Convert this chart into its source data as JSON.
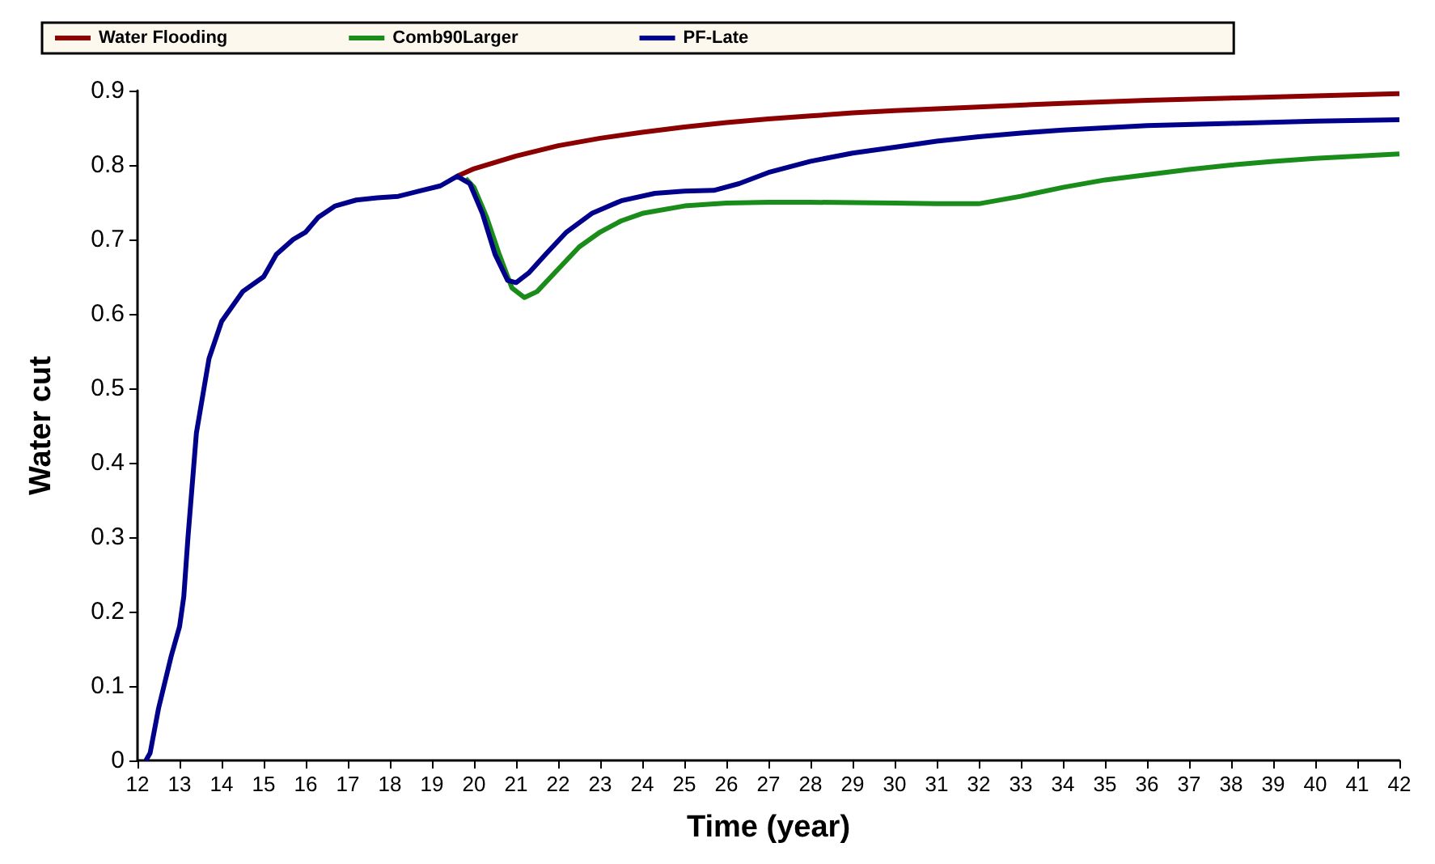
{
  "chart_data": {
    "type": "line",
    "xlabel": "Time (year)",
    "ylabel": "Water cut",
    "xlim": [
      12,
      42
    ],
    "xticks": [
      12,
      13,
      14,
      15,
      16,
      17,
      18,
      19,
      20,
      21,
      22,
      23,
      24,
      25,
      26,
      27,
      28,
      29,
      30,
      31,
      32,
      33,
      34,
      35,
      36,
      37,
      38,
      39,
      40,
      41,
      42
    ],
    "ylim": [
      0,
      0.9
    ],
    "yticks": [
      0,
      0.1,
      0.2,
      0.3,
      0.4,
      0.5,
      0.6,
      0.7,
      0.8,
      0.9
    ],
    "grid": false,
    "legend": "top",
    "marker": "none",
    "line_style": "solid",
    "series": [
      {
        "name": "Water Flooding",
        "color": "#8b0000",
        "x": [
          19.6,
          20,
          21,
          22,
          23,
          24,
          25,
          26,
          27,
          28,
          29,
          30,
          32,
          34,
          36,
          38,
          40,
          42
        ],
        "values": [
          0.785,
          0.795,
          0.812,
          0.826,
          0.836,
          0.844,
          0.851,
          0.857,
          0.862,
          0.866,
          0.87,
          0.873,
          0.878,
          0.883,
          0.887,
          0.89,
          0.893,
          0.896
        ]
      },
      {
        "name": "Comb90Larger",
        "color": "#1a8c1a",
        "x": [
          19.8,
          20.0,
          20.3,
          20.6,
          20.9,
          21.2,
          21.5,
          22.0,
          22.5,
          23.0,
          23.5,
          24.0,
          25,
          26,
          27,
          28,
          30,
          31,
          32,
          33,
          34,
          35,
          36,
          37,
          38,
          39,
          40,
          41,
          42
        ],
        "values": [
          0.782,
          0.77,
          0.73,
          0.68,
          0.635,
          0.622,
          0.63,
          0.66,
          0.69,
          0.71,
          0.725,
          0.735,
          0.745,
          0.749,
          0.75,
          0.75,
          0.749,
          0.748,
          0.748,
          0.758,
          0.77,
          0.78,
          0.787,
          0.794,
          0.8,
          0.805,
          0.809,
          0.812,
          0.815
        ]
      },
      {
        "name": "PF-Late",
        "color": "#00008b",
        "x": [
          12.2,
          12.3,
          12.5,
          12.8,
          13.0,
          13.1,
          13.2,
          13.4,
          13.7,
          14.0,
          14.5,
          15.0,
          15.3,
          15.7,
          16.0,
          16.3,
          16.7,
          17.2,
          17.7,
          18.2,
          18.7,
          19.2,
          19.6,
          19.9,
          20.2,
          20.5,
          20.8,
          21.0,
          21.3,
          21.7,
          22.2,
          22.8,
          23.5,
          24.3,
          25.0,
          25.7,
          26.3,
          27,
          28,
          29,
          30,
          31,
          32,
          33,
          34,
          35,
          36,
          38,
          40,
          42
        ],
        "values": [
          0,
          0.01,
          0.07,
          0.14,
          0.18,
          0.22,
          0.3,
          0.44,
          0.54,
          0.59,
          0.63,
          0.65,
          0.68,
          0.7,
          0.71,
          0.73,
          0.745,
          0.753,
          0.756,
          0.758,
          0.765,
          0.772,
          0.785,
          0.775,
          0.735,
          0.68,
          0.645,
          0.642,
          0.655,
          0.68,
          0.71,
          0.735,
          0.752,
          0.762,
          0.765,
          0.766,
          0.775,
          0.79,
          0.805,
          0.816,
          0.824,
          0.832,
          0.838,
          0.843,
          0.847,
          0.85,
          0.853,
          0.856,
          0.859,
          0.861
        ]
      }
    ]
  }
}
